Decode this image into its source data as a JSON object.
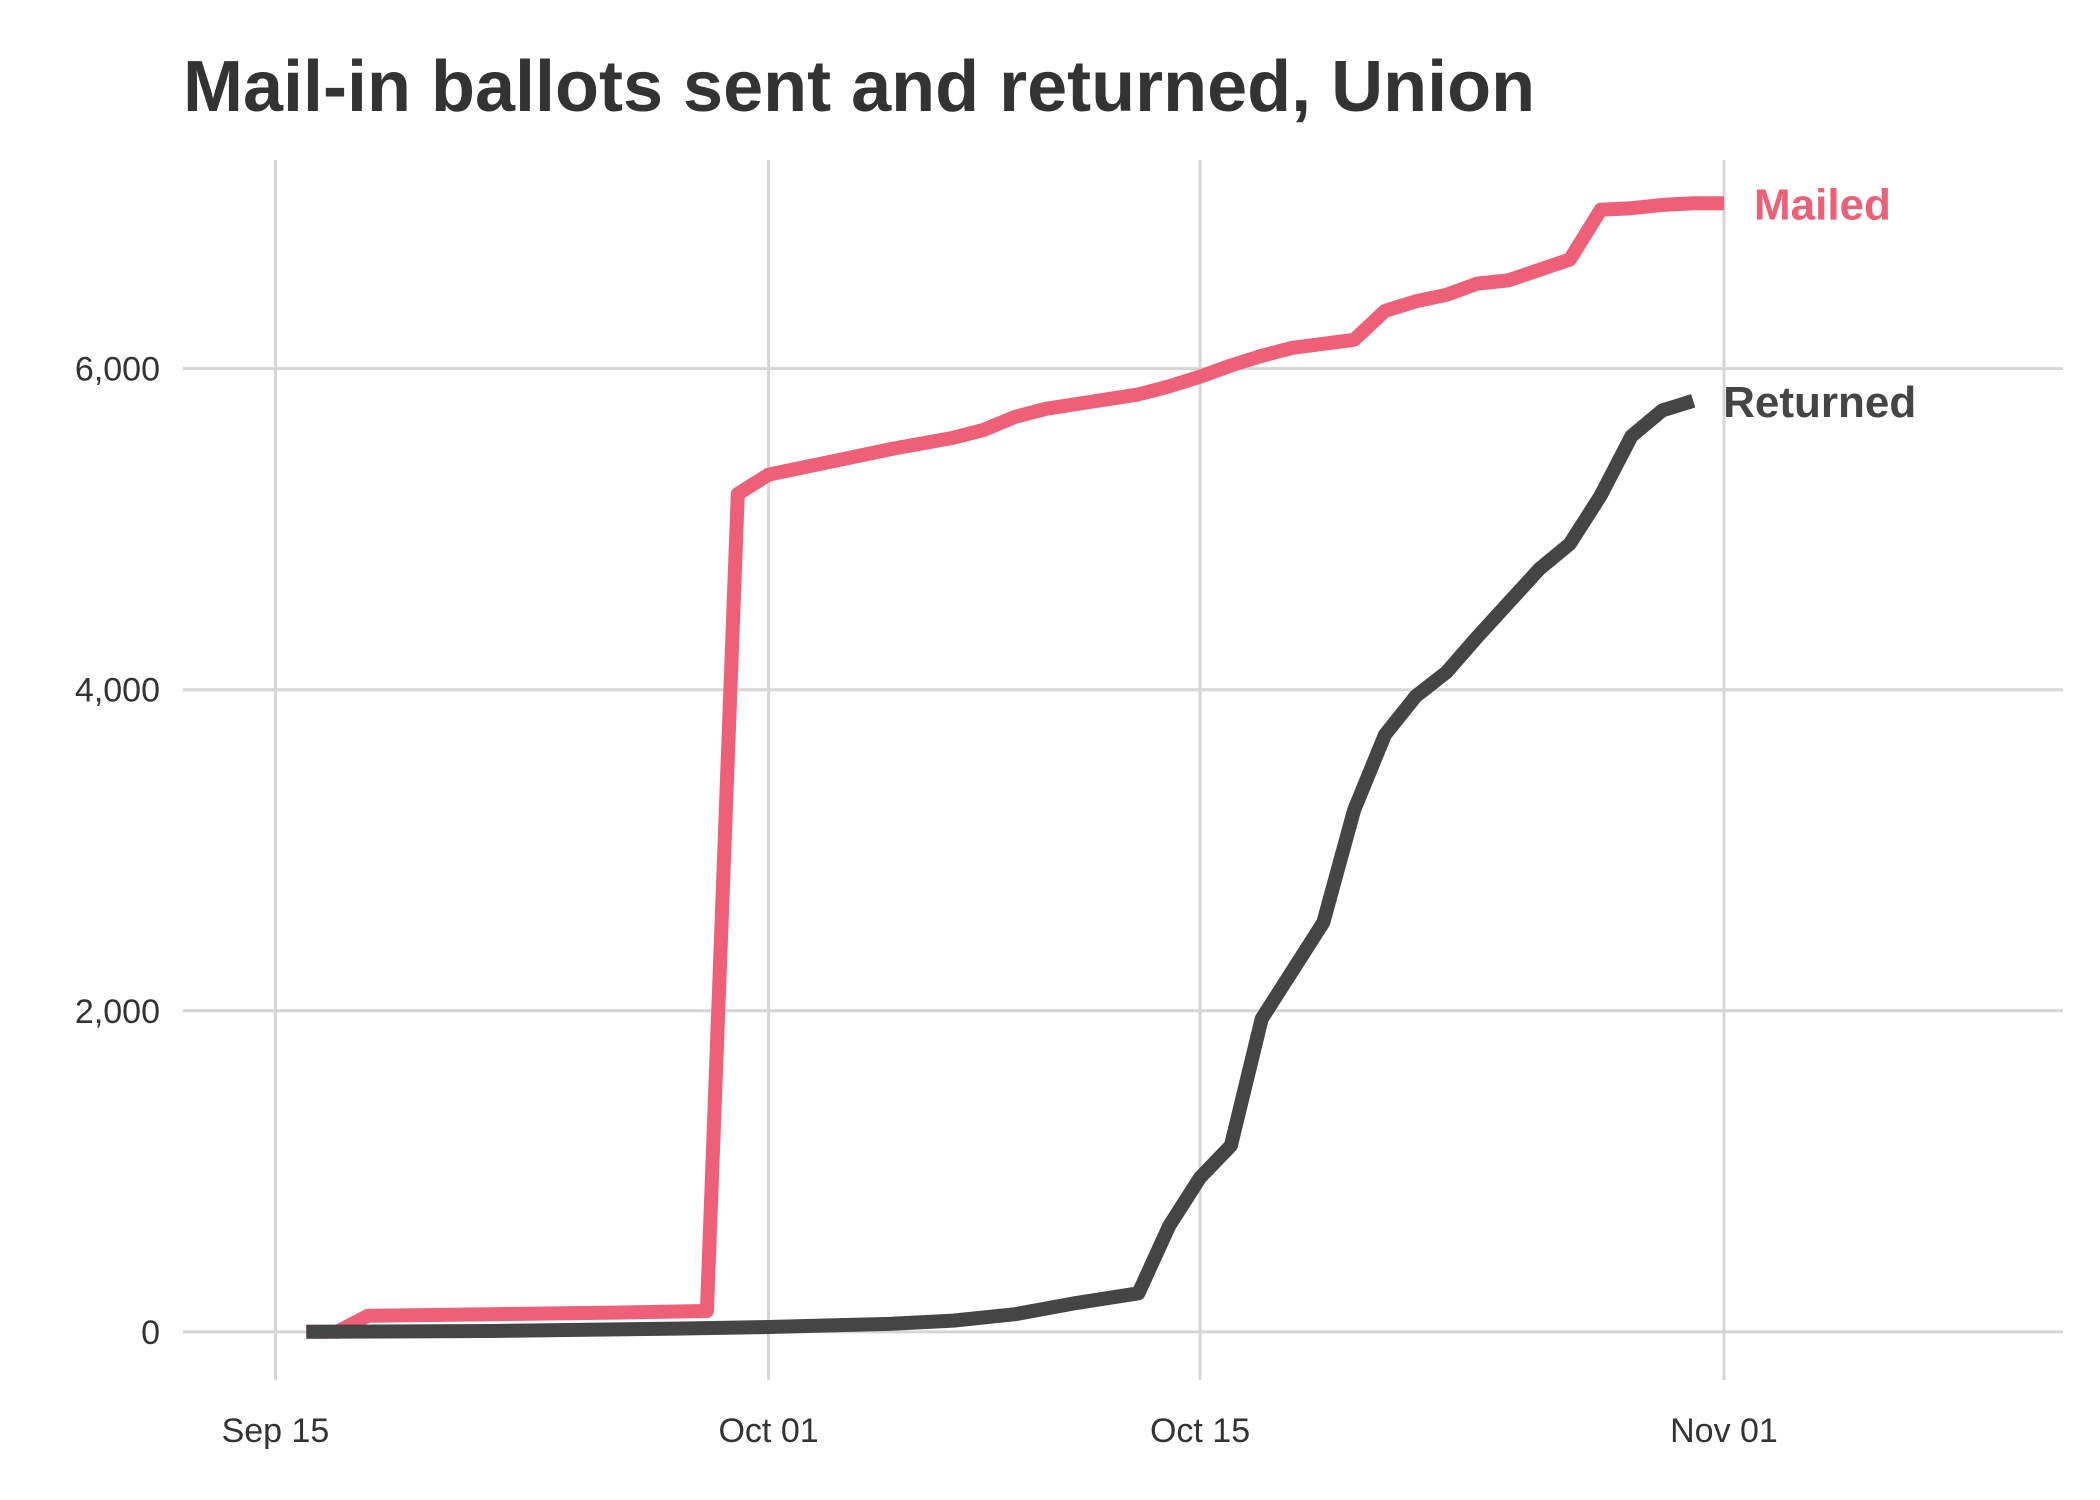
{
  "chart_data": {
    "type": "line",
    "title": "Mail-in ballots sent and returned, Union",
    "xlabel": "",
    "ylabel": "",
    "x_type": "date",
    "xlim": [
      "2020-09-12",
      "2020-11-12"
    ],
    "ylim": [
      -300,
      7300
    ],
    "grid": true,
    "legend": "direct labels at line ends",
    "x_ticks": [
      {
        "date": "2020-09-15",
        "label": "Sep 15"
      },
      {
        "date": "2020-10-01",
        "label": "Oct 01"
      },
      {
        "date": "2020-10-15",
        "label": "Oct 15"
      },
      {
        "date": "2020-11-01",
        "label": "Nov 01"
      }
    ],
    "y_ticks": [
      {
        "value": 0,
        "label": "0"
      },
      {
        "value": 2000,
        "label": "2,000"
      },
      {
        "value": 4000,
        "label": "4,000"
      },
      {
        "value": 6000,
        "label": "6,000"
      }
    ],
    "series": [
      {
        "name": "Mailed",
        "color": "#ee5f78",
        "points": [
          [
            "2020-09-16",
            0
          ],
          [
            "2020-09-17",
            0
          ],
          [
            "2020-09-18",
            100
          ],
          [
            "2020-09-22",
            110
          ],
          [
            "2020-09-26",
            120
          ],
          [
            "2020-09-29",
            130
          ],
          [
            "2020-09-30",
            5220
          ],
          [
            "2020-10-01",
            5340
          ],
          [
            "2020-10-03",
            5420
          ],
          [
            "2020-10-05",
            5500
          ],
          [
            "2020-10-07",
            5570
          ],
          [
            "2020-10-08",
            5620
          ],
          [
            "2020-10-09",
            5700
          ],
          [
            "2020-10-10",
            5750
          ],
          [
            "2020-10-11",
            5780
          ],
          [
            "2020-10-13",
            5840
          ],
          [
            "2020-10-14",
            5890
          ],
          [
            "2020-10-15",
            5950
          ],
          [
            "2020-10-16",
            6020
          ],
          [
            "2020-10-17",
            6080
          ],
          [
            "2020-10-18",
            6130
          ],
          [
            "2020-10-20",
            6180
          ],
          [
            "2020-10-21",
            6360
          ],
          [
            "2020-10-22",
            6420
          ],
          [
            "2020-10-23",
            6460
          ],
          [
            "2020-10-24",
            6530
          ],
          [
            "2020-10-25",
            6550
          ],
          [
            "2020-10-27",
            6680
          ],
          [
            "2020-10-28",
            6990
          ],
          [
            "2020-10-29",
            7000
          ],
          [
            "2020-10-30",
            7020
          ],
          [
            "2020-10-31",
            7030
          ],
          [
            "2020-11-01",
            7030
          ]
        ]
      },
      {
        "name": "Returned",
        "color": "#454545",
        "points": [
          [
            "2020-09-16",
            0
          ],
          [
            "2020-09-22",
            5
          ],
          [
            "2020-09-28",
            20
          ],
          [
            "2020-10-01",
            30
          ],
          [
            "2020-10-03",
            40
          ],
          [
            "2020-10-05",
            50
          ],
          [
            "2020-10-07",
            70
          ],
          [
            "2020-10-09",
            110
          ],
          [
            "2020-10-11",
            180
          ],
          [
            "2020-10-13",
            240
          ],
          [
            "2020-10-14",
            660
          ],
          [
            "2020-10-15",
            960
          ],
          [
            "2020-10-16",
            1160
          ],
          [
            "2020-10-17",
            1950
          ],
          [
            "2020-10-18",
            2250
          ],
          [
            "2020-10-19",
            2550
          ],
          [
            "2020-10-20",
            3250
          ],
          [
            "2020-10-21",
            3720
          ],
          [
            "2020-10-22",
            3960
          ],
          [
            "2020-10-23",
            4110
          ],
          [
            "2020-10-24",
            4330
          ],
          [
            "2020-10-25",
            4540
          ],
          [
            "2020-10-26",
            4750
          ],
          [
            "2020-10-27",
            4910
          ],
          [
            "2020-10-28",
            5210
          ],
          [
            "2020-10-29",
            5580
          ],
          [
            "2020-10-30",
            5740
          ],
          [
            "2020-10-31",
            5800
          ]
        ]
      }
    ],
    "colors": {
      "background": "#ffffff",
      "grid": "#d6d6d6",
      "text": "#333333"
    }
  }
}
